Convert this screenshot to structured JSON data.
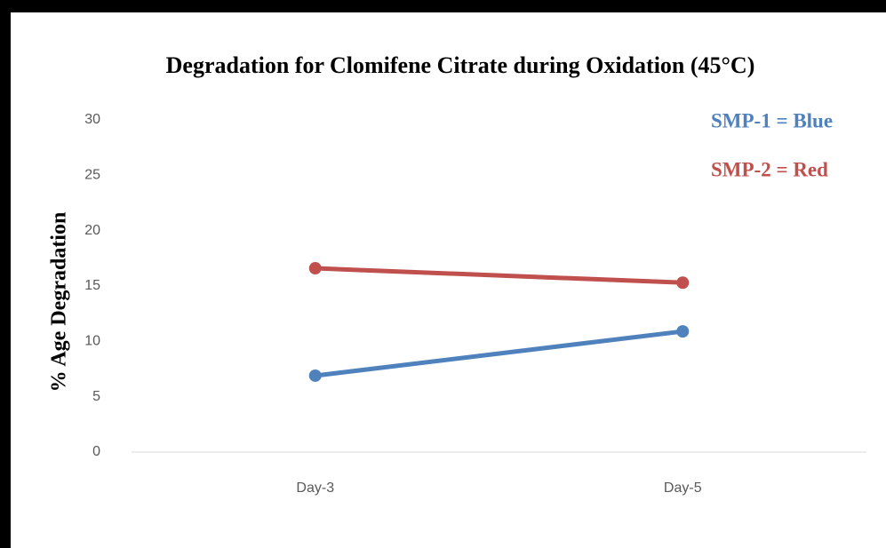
{
  "chart_data": {
    "type": "line",
    "title": "Degradation for Clomifene Citrate during Oxidation (45°C)",
    "y_label": "% Age Degradation",
    "categories": [
      "Day-3",
      "Day-5"
    ],
    "series": [
      {
        "name": "SMP-1 = Blue",
        "color": "#4f81bd",
        "values": [
          6.9,
          10.9
        ]
      },
      {
        "name": "SMP-2 = Red",
        "color": "#c0504d",
        "values": [
          16.6,
          15.3
        ]
      }
    ],
    "ylim": [
      0,
      30
    ],
    "yticks": [
      0,
      5,
      10,
      15,
      20,
      25,
      30
    ],
    "grid": false
  }
}
